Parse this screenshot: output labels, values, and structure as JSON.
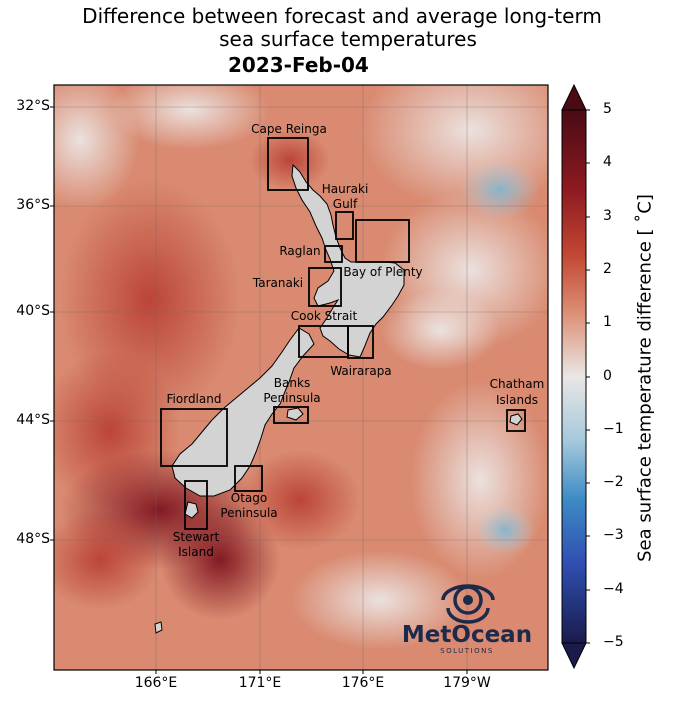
{
  "title_line1": "Difference between forecast and average long-term",
  "title_line2": "sea surface temperatures",
  "subtitle": "2023-Feb-04",
  "lat_labels": [
    "32°S",
    "36°S",
    "40°S",
    "44°S",
    "48°S"
  ],
  "lon_labels": [
    "166°E",
    "171°E",
    "176°E",
    "179°W"
  ],
  "colorbar": {
    "label": "Sea surface temperature difference [$^\\circ$C]",
    "display_label": "Sea surface temperature difference [ ˚C]",
    "ticks": [
      "5",
      "4",
      "3",
      "2",
      "1",
      "0",
      "−1",
      "−2",
      "−3",
      "−4",
      "−5"
    ],
    "min": -5,
    "max": 5,
    "colors": [
      "#1a1b4b",
      "#2f4fb2",
      "#3f8ec7",
      "#a9cfe0",
      "#e8e8e8",
      "#e2a793",
      "#c9553b",
      "#9c1f24",
      "#4a0b14"
    ]
  },
  "regions": [
    {
      "name": "cape-reinga",
      "label": "Cape Reinga"
    },
    {
      "name": "hauraki-gulf",
      "label1": "Hauraki",
      "label2": "Gulf"
    },
    {
      "name": "raglan",
      "label": "Raglan"
    },
    {
      "name": "bay-of-plenty",
      "label": "Bay of Plenty"
    },
    {
      "name": "taranaki",
      "label": "Taranaki"
    },
    {
      "name": "cook-strait",
      "label": "Cook Strait"
    },
    {
      "name": "wairarapa",
      "label": "Wairarapa"
    },
    {
      "name": "banks-peninsula",
      "label1": "Banks",
      "label2": "Peninsula"
    },
    {
      "name": "chatham-islands",
      "label1": "Chatham",
      "label2": "Islands"
    },
    {
      "name": "fiordland",
      "label": "Fiordland"
    },
    {
      "name": "otago-peninsula",
      "label1": "Otago",
      "label2": "Peninsula"
    },
    {
      "name": "stewart-island",
      "label1": "Stewart",
      "label2": "Island"
    }
  ],
  "logo": {
    "name": "MetOcean",
    "tagline": "SOLUTIONS",
    "color": "#1d2a4a"
  }
}
